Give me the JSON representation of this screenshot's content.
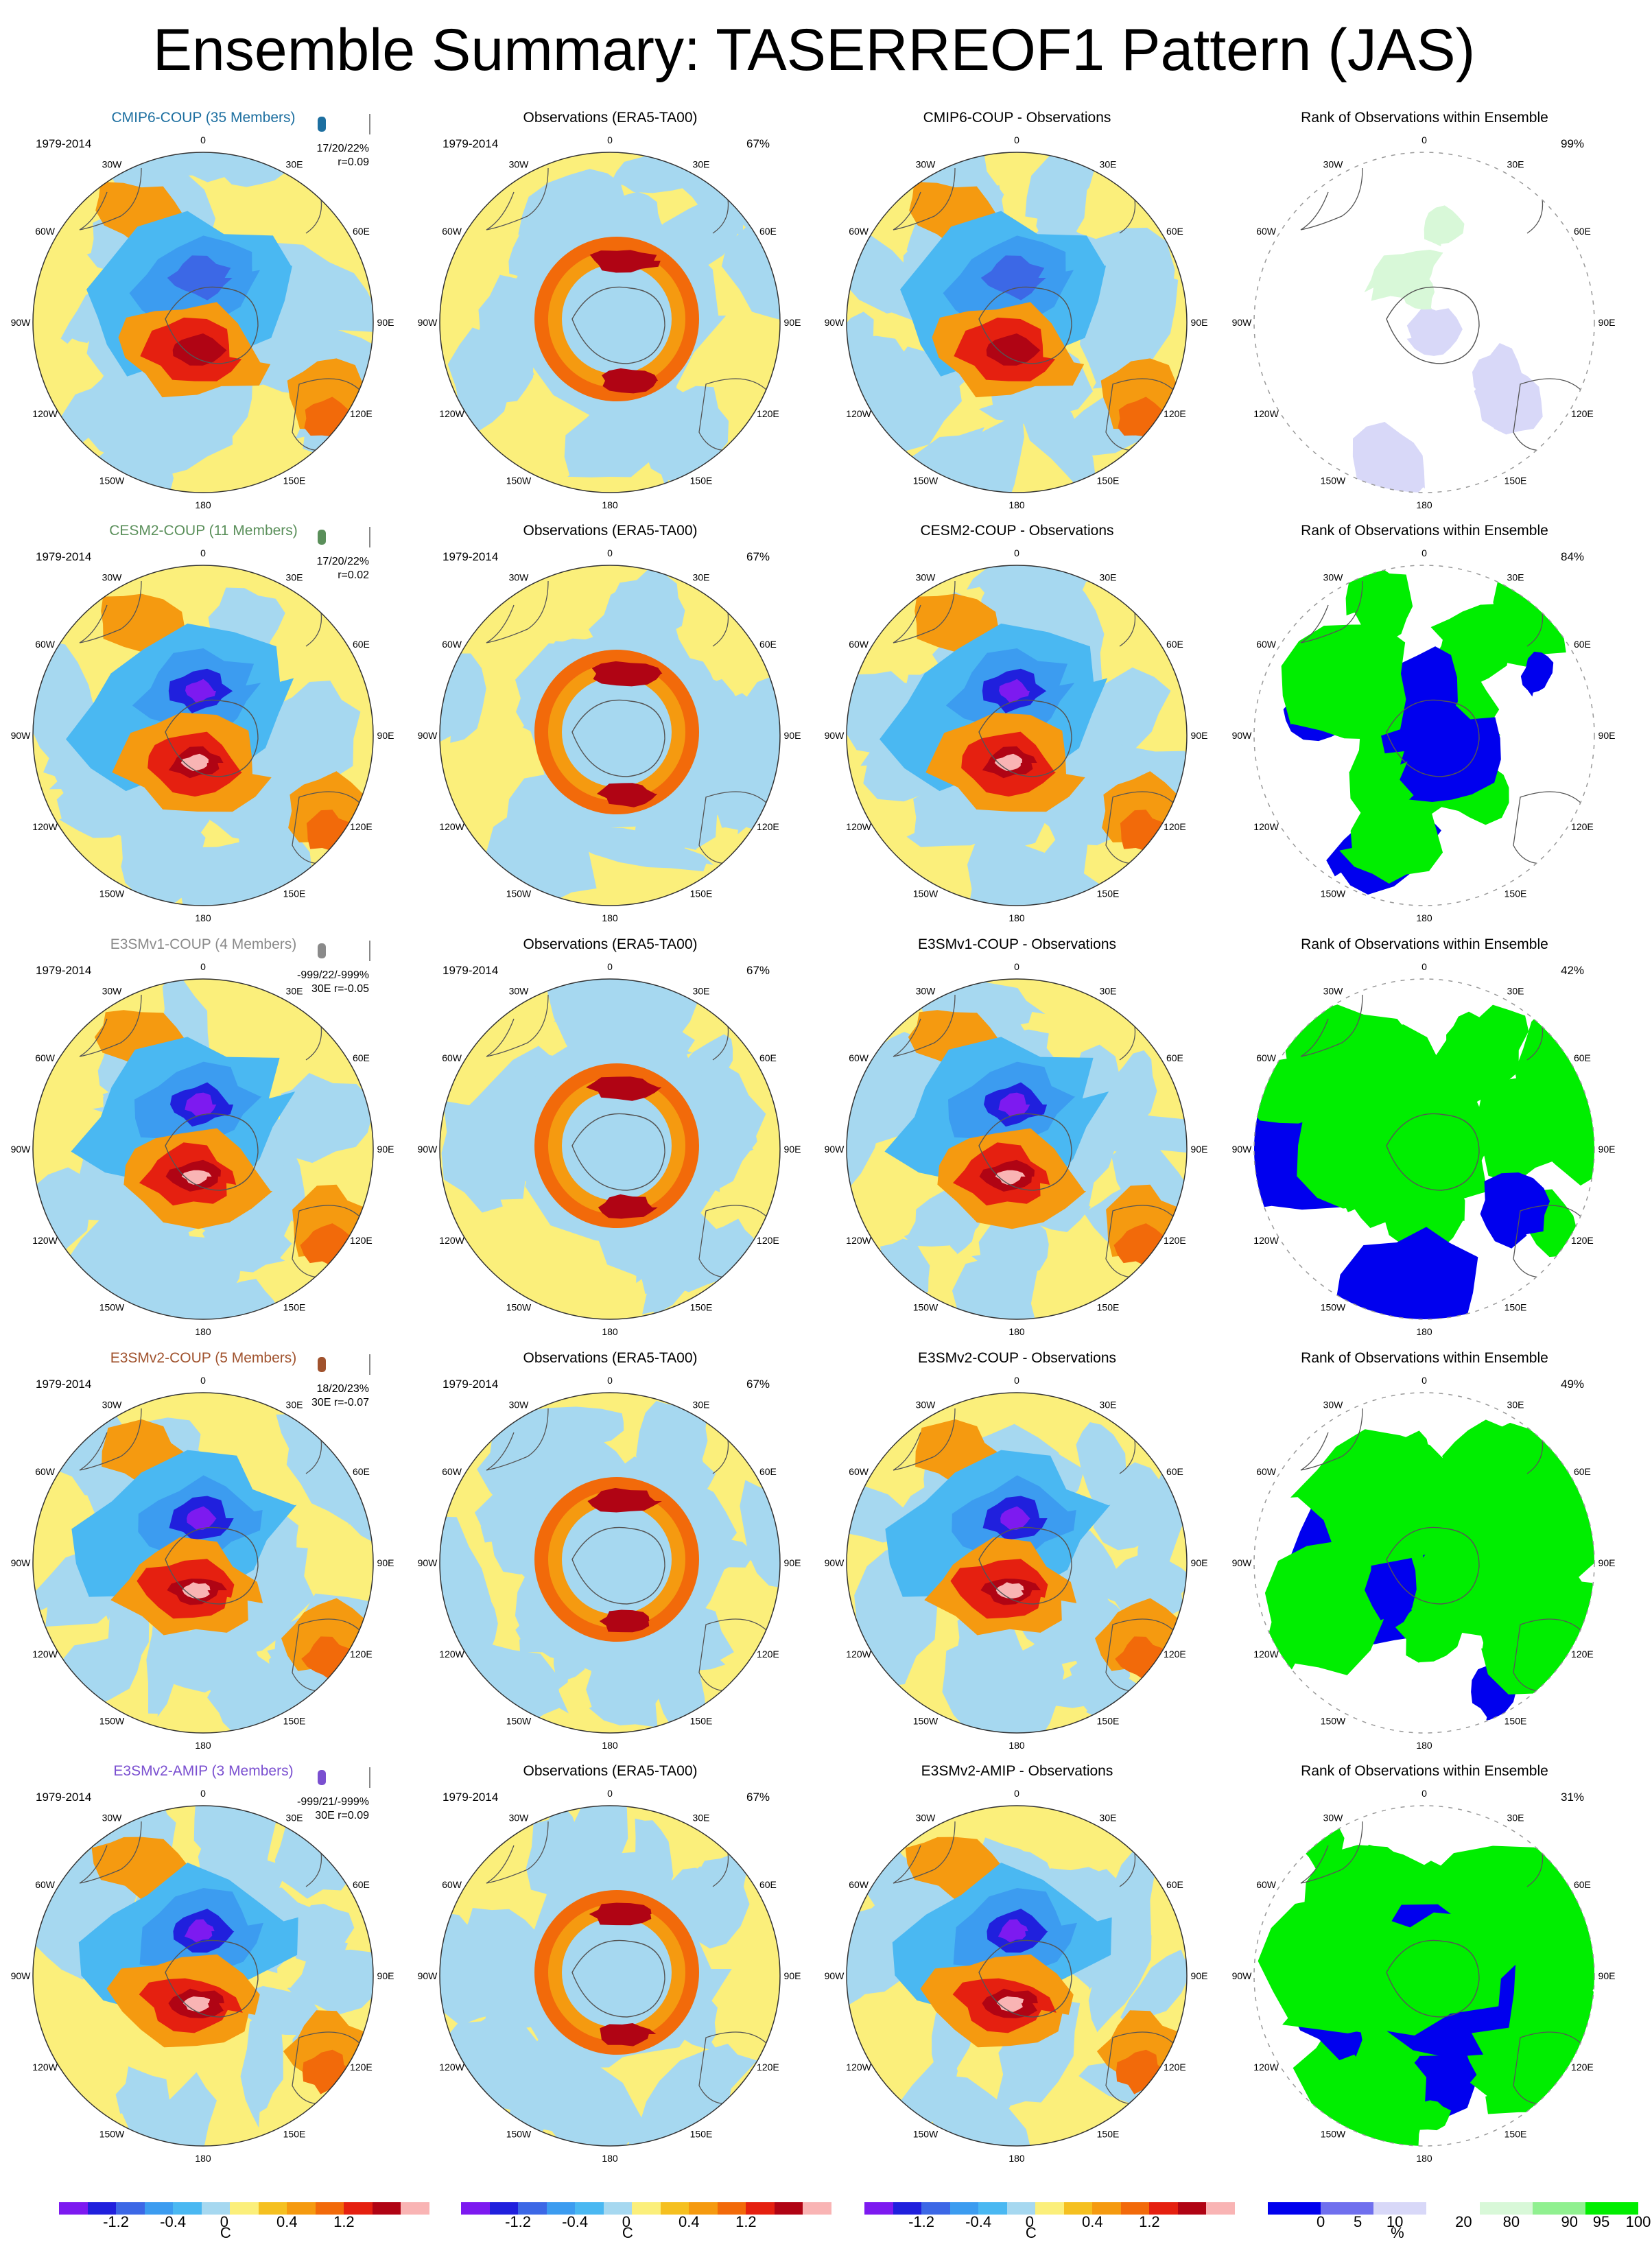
{
  "title": "Ensemble Summary: TASERREOF1 Pattern (JAS)",
  "colors": {
    "diverging": [
      "#7d1af0",
      "#2020dd",
      "#3c68e6",
      "#3c9cf0",
      "#4ab8f2",
      "#a6d8f0",
      "#fbef7b",
      "#f5c020",
      "#f59a10",
      "#f26a0a",
      "#e52010",
      "#b00414",
      "#f9b4b4"
    ],
    "rank": [
      "#0000ee",
      "#7070ee",
      "#d8d8f8",
      "#ffffff",
      "#d8f8d8",
      "#90f090",
      "#00ee00"
    ],
    "continent": "#555555"
  },
  "diverging_colorbar": {
    "labels": [
      "-1.2",
      "-0.4",
      "0",
      "0.4",
      "1.2"
    ],
    "label_positions": [
      2,
      4,
      5.8,
      8,
      10
    ],
    "unit": "C"
  },
  "rank_colorbar": {
    "labels": [
      "0",
      "5",
      "10",
      "20",
      "80",
      "90",
      "95",
      "100"
    ],
    "label_positions": [
      1,
      1.7,
      2.4,
      3.7,
      4.6,
      5.7,
      6.3,
      7
    ],
    "unit": "%"
  },
  "longitude_labels": [
    "0",
    "30E",
    "60E",
    "90E",
    "120E",
    "150E",
    "180",
    "150W",
    "120W",
    "90W",
    "60W",
    "30W"
  ],
  "rows": [
    {
      "model": "CMIP6-COUP (35 Members)",
      "model_color": "#1d6fa0",
      "period": "1979-2014",
      "stats1": "17/20/22%",
      "stats2": "r=0.09",
      "obs_title": "Observations (ERA5-TA00)",
      "obs_period": "1979-2014",
      "obs_pct": "67%",
      "diff_title": "CMIP6-COUP - Observations",
      "rank_title": "Rank of Observations within Ensemble",
      "rank_pct": "99%",
      "rank_coverage": 0.04
    },
    {
      "model": "CESM2-COUP (11 Members)",
      "model_color": "#5a8f5a",
      "period": "1979-2014",
      "stats1": "17/20/22%",
      "stats2": "r=0.02",
      "obs_title": "Observations (ERA5-TA00)",
      "obs_period": "1979-2014",
      "obs_pct": "67%",
      "diff_title": "CESM2-COUP - Observations",
      "rank_title": "Rank of Observations within Ensemble",
      "rank_pct": "84%",
      "rank_coverage": 0.35
    },
    {
      "model": "E3SMv1-COUP (4 Members)",
      "model_color": "#8a8a8a",
      "period": "1979-2014",
      "stats1": "-999/22/-999%",
      "stats2": "30E r=-0.05",
      "obs_title": "Observations (ERA5-TA00)",
      "obs_period": "1979-2014",
      "obs_pct": "67%",
      "diff_title": "E3SMv1-COUP - Observations",
      "rank_title": "Rank of Observations within Ensemble",
      "rank_pct": "42%",
      "rank_coverage": 0.7
    },
    {
      "model": "E3SMv2-COUP (5 Members)",
      "model_color": "#a0522d",
      "period": "1979-2014",
      "stats1": "18/20/23%",
      "stats2": "30E r=-0.07",
      "obs_title": "Observations (ERA5-TA00)",
      "obs_period": "1979-2014",
      "obs_pct": "67%",
      "diff_title": "E3SMv2-COUP - Observations",
      "rank_title": "Rank of Observations within Ensemble",
      "rank_pct": "49%",
      "rank_coverage": 0.65
    },
    {
      "model": "E3SMv2-AMIP (3 Members)",
      "model_color": "#7a4fd0",
      "period": "1979-2014",
      "stats1": "-999/21/-999%",
      "stats2": "30E r=0.09",
      "obs_title": "Observations (ERA5-TA00)",
      "obs_period": "1979-2014",
      "obs_pct": "67%",
      "diff_title": "E3SMv2-AMIP - Observations",
      "rank_title": "Rank of Observations within Ensemble",
      "rank_pct": "31%",
      "rank_coverage": 0.8
    }
  ]
}
